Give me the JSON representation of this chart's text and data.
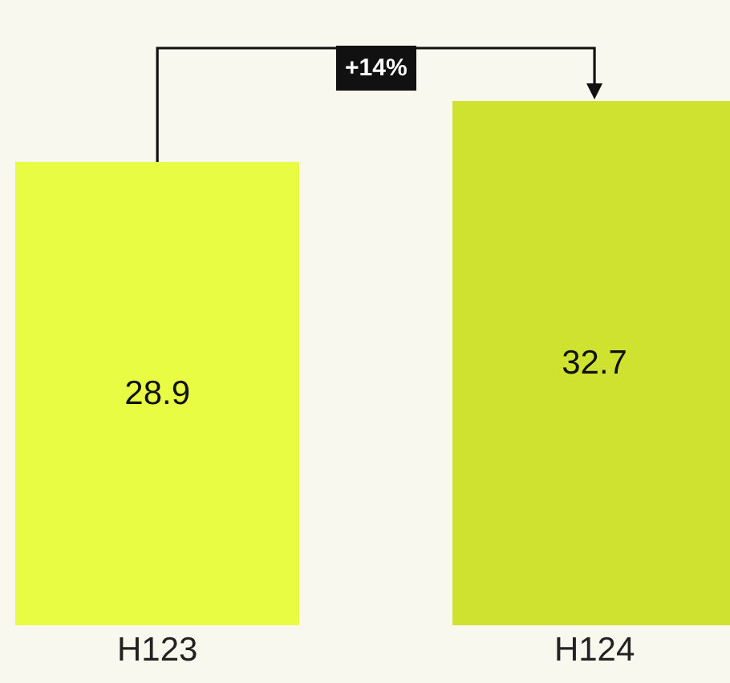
{
  "chart_data": {
    "type": "bar",
    "categories": [
      "H123",
      "H124"
    ],
    "values": [
      28.9,
      32.7
    ],
    "colors": [
      "#e8fc44",
      "#cfe22f"
    ],
    "ylim": [
      0,
      39
    ],
    "data_labels": true,
    "tick_labels": "x",
    "annotations": [
      "+14%"
    ]
  }
}
